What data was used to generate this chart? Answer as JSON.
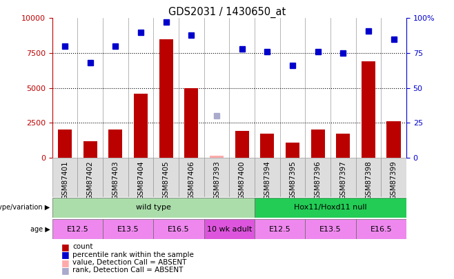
{
  "title": "GDS2031 / 1430650_at",
  "samples": [
    "GSM87401",
    "GSM87402",
    "GSM87403",
    "GSM87404",
    "GSM87405",
    "GSM87406",
    "GSM87393",
    "GSM87400",
    "GSM87394",
    "GSM87395",
    "GSM87396",
    "GSM87397",
    "GSM87398",
    "GSM87399"
  ],
  "bar_values": [
    2000,
    1200,
    2000,
    4600,
    8500,
    5000,
    null,
    1900,
    1700,
    1100,
    2000,
    1700,
    6900,
    2600
  ],
  "bar_absent": [
    null,
    null,
    null,
    null,
    null,
    null,
    150,
    null,
    null,
    null,
    null,
    null,
    null,
    null
  ],
  "dot_values": [
    80,
    68,
    80,
    90,
    97,
    88,
    null,
    78,
    76,
    66,
    76,
    75,
    91,
    85
  ],
  "dot_absent": [
    null,
    null,
    null,
    null,
    null,
    null,
    30,
    null,
    null,
    null,
    null,
    null,
    null,
    null
  ],
  "ylim_left": [
    0,
    10000
  ],
  "ylim_right": [
    0,
    100
  ],
  "yticks_left": [
    0,
    2500,
    5000,
    7500,
    10000
  ],
  "yticks_right": [
    0,
    25,
    50,
    75,
    100
  ],
  "genotype_groups": [
    {
      "label": "wild type",
      "start": 0,
      "end": 8,
      "color": "#aaddaa"
    },
    {
      "label": "Hox11/Hoxd11 null",
      "start": 8,
      "end": 14,
      "color": "#22cc55"
    }
  ],
  "age_groups": [
    {
      "label": "E12.5",
      "start": 0,
      "end": 2,
      "color": "#ee88ee"
    },
    {
      "label": "E13.5",
      "start": 2,
      "end": 4,
      "color": "#ee88ee"
    },
    {
      "label": "E16.5",
      "start": 4,
      "end": 6,
      "color": "#ee88ee"
    },
    {
      "label": "10 wk adult",
      "start": 6,
      "end": 8,
      "color": "#dd55dd"
    },
    {
      "label": "E12.5",
      "start": 8,
      "end": 10,
      "color": "#ee88ee"
    },
    {
      "label": "E13.5",
      "start": 10,
      "end": 12,
      "color": "#ee88ee"
    },
    {
      "label": "E16.5",
      "start": 12,
      "end": 14,
      "color": "#ee88ee"
    }
  ],
  "bar_color": "#bb0000",
  "bar_absent_color": "#ffaaaa",
  "dot_color": "#0000cc",
  "dot_absent_color": "#aaaacc",
  "background_color": "#ffffff",
  "cell_bg_color": "#dddddd",
  "legend_items": [
    {
      "label": "count",
      "color": "#bb0000"
    },
    {
      "label": "percentile rank within the sample",
      "color": "#0000cc"
    },
    {
      "label": "value, Detection Call = ABSENT",
      "color": "#ffaaaa"
    },
    {
      "label": "rank, Detection Call = ABSENT",
      "color": "#aaaacc"
    }
  ]
}
